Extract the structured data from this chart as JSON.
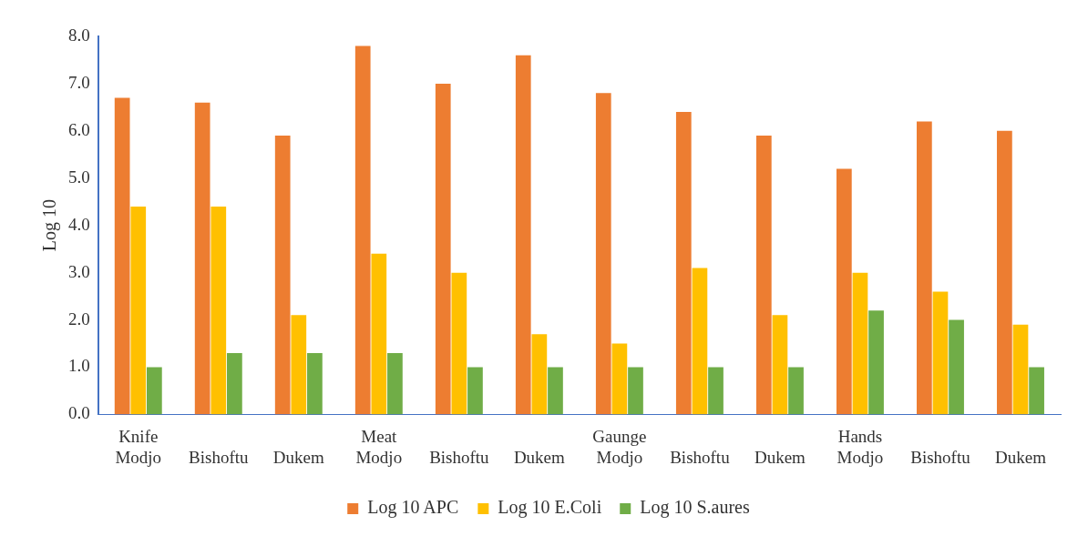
{
  "chart_data": {
    "type": "bar",
    "ylabel": "Log 10",
    "categories": [
      "Modjo",
      "Bishoftu",
      "Dukem",
      "Modjo",
      "Bishoftu",
      "Dukem",
      "Modjo",
      "Bishoftu",
      "Dukem",
      "Modjo",
      "Bishoftu",
      "Dukem"
    ],
    "annotations": [
      "Knife",
      "Meat",
      "Gaunge",
      "Hands"
    ],
    "series": [
      {
        "name": "Log 10 APC",
        "color": "#ed7d31",
        "values": [
          6.7,
          6.6,
          5.9,
          7.8,
          7.0,
          7.6,
          6.8,
          6.4,
          5.9,
          5.2,
          6.2,
          6.0
        ]
      },
      {
        "name": "Log 10 E.Coli",
        "color": "#ffc000",
        "values": [
          4.4,
          4.4,
          2.1,
          3.4,
          3.0,
          1.7,
          1.5,
          3.1,
          2.1,
          3.0,
          2.6,
          1.9
        ]
      },
      {
        "name": "Log 10 S.aures",
        "color": "#70ad47",
        "values": [
          1.0,
          1.3,
          1.3,
          1.3,
          1.0,
          1.0,
          1.0,
          1.0,
          1.0,
          2.2,
          2.0,
          1.0
        ]
      }
    ],
    "ylim": [
      0,
      8
    ],
    "yticks": [
      {
        "value": 0,
        "label": "0.0"
      },
      {
        "value": 1,
        "label": "1.0"
      },
      {
        "value": 2,
        "label": "2.0"
      },
      {
        "value": 3,
        "label": "3.0"
      },
      {
        "value": 4,
        "label": "4.0"
      },
      {
        "value": 5,
        "label": "5.0"
      },
      {
        "value": 6,
        "label": "6.0"
      },
      {
        "value": 7,
        "label": "7.0"
      },
      {
        "value": 8,
        "label": "8.0"
      }
    ],
    "grid": false,
    "legend": "bottom"
  }
}
